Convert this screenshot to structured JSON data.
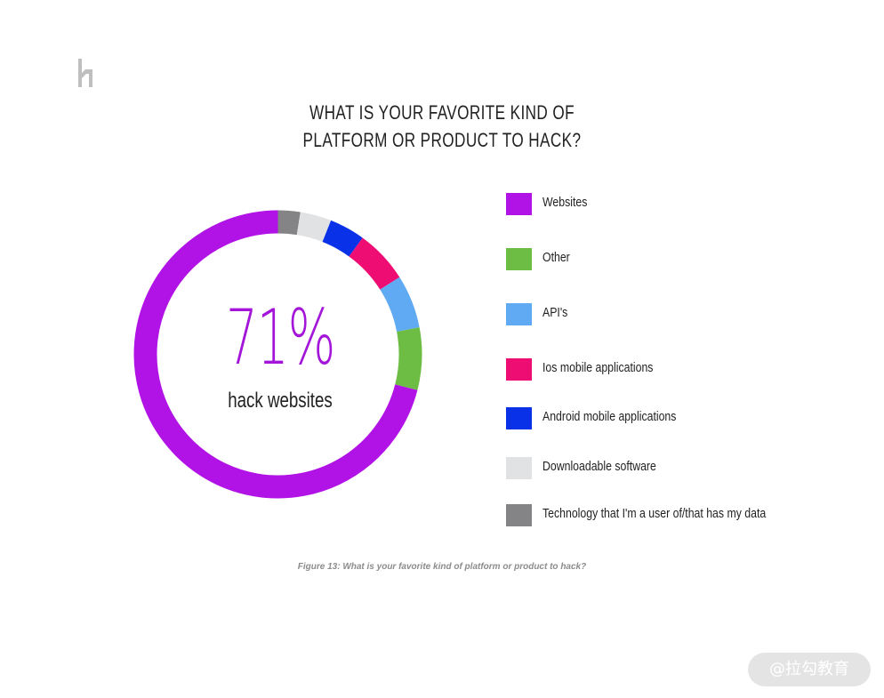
{
  "title_line1": "WHAT IS YOUR FAVORITE KIND OF",
  "title_line2": "PLATFORM OR PRODUCT TO HACK?",
  "center_value": "71%",
  "center_label": "hack websites",
  "caption": "Figure 13:  What is your favorite kind of platform or product to hack?",
  "watermark": "@拉勾教育",
  "chart_data": {
    "type": "pie",
    "variant": "donut",
    "title": "WHAT IS YOUR FAVORITE KIND OF PLATFORM OR PRODUCT TO HACK?",
    "legend_position": "right",
    "series": [
      {
        "name": "Websites",
        "value": 71,
        "color": "#b113e6"
      },
      {
        "name": "Other",
        "value": 7,
        "color": "#6dbd45"
      },
      {
        "name": "API's",
        "value": 6,
        "color": "#60aaf3"
      },
      {
        "name": "Ios mobile applications",
        "value": 6,
        "color": "#ee0e73"
      },
      {
        "name": "Android mobile applications",
        "value": 4,
        "color": "#0932e8"
      },
      {
        "name": "Downloadable software",
        "value": 3.5,
        "color": "#e1e2e4"
      },
      {
        "name": "Technology that I'm a user of/that has my data",
        "value": 2.5,
        "color": "#848487"
      }
    ]
  }
}
